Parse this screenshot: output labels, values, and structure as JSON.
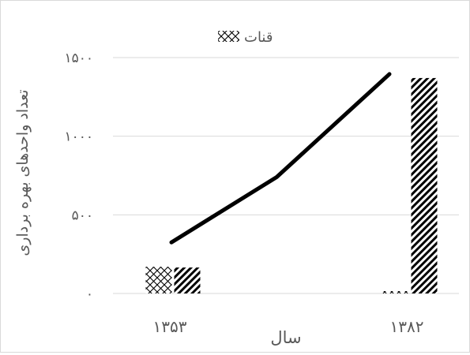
{
  "chart_data": {
    "type": "bar",
    "categories": [
      "۱۳۵۳",
      "۱۳۸۲"
    ],
    "series": [
      {
        "name": "قنات",
        "kind": "bar",
        "pattern": "crosshatch",
        "values": [
          170,
          15
        ]
      },
      {
        "kind": "bar",
        "pattern": "diagonal-stripes",
        "values": [
          165,
          1370
        ]
      },
      {
        "kind": "line",
        "color": "#000000",
        "x": [
          1353,
          1367,
          1382
        ],
        "values": [
          325,
          740,
          1395
        ]
      }
    ],
    "legend": {
      "position": "top",
      "label": "قنات"
    },
    "xlabel": "سال",
    "ylabel": "تعداد واحدهای بهره برداری",
    "ylim": [
      0,
      1500
    ],
    "yticks": [
      {
        "value": 0,
        "label": "۰"
      },
      {
        "value": 500,
        "label": "۵۰۰"
      },
      {
        "value": 1000,
        "label": "۱۰۰۰"
      },
      {
        "value": 1500,
        "label": "۱۵۰۰"
      }
    ],
    "grid": true,
    "colors": {
      "gridline": "#d9d9d9",
      "text": "#595959",
      "line": "#000000",
      "bar": "#000000"
    }
  }
}
